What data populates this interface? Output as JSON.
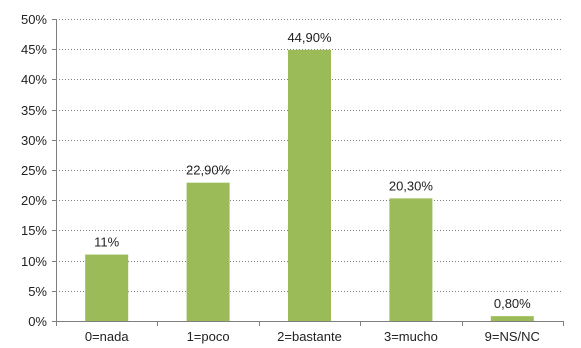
{
  "chart_data": {
    "type": "bar",
    "categories": [
      "0=nada",
      "1=poco",
      "2=bastante",
      "3=mucho",
      "9=NS/NC"
    ],
    "values": [
      11,
      22.9,
      44.9,
      20.3,
      0.8
    ],
    "data_labels": [
      "11%",
      "22,90%",
      "44,90%",
      "20,30%",
      "0,80%"
    ],
    "y_ticks": [
      0,
      5,
      10,
      15,
      20,
      25,
      30,
      35,
      40,
      45,
      50
    ],
    "y_tick_labels": [
      "0%",
      "5%",
      "10%",
      "15%",
      "20%",
      "25%",
      "30%",
      "35%",
      "40%",
      "45%",
      "50%"
    ],
    "ylim": [
      0,
      50
    ],
    "grid": true,
    "legend": "none",
    "bar_color": "#9bbb59",
    "title": "",
    "xlabel": "",
    "ylabel": ""
  }
}
